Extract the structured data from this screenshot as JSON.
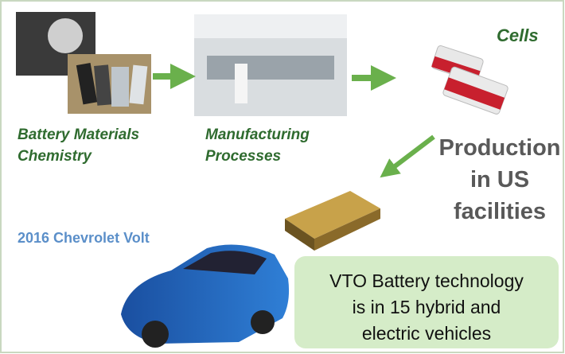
{
  "nodes": [
    {
      "id": "materials",
      "label_lines": [
        "Battery Materials",
        "Chemistry"
      ]
    },
    {
      "id": "manufacturing",
      "label_lines": [
        "Manufacturing",
        "Processes"
      ]
    },
    {
      "id": "cells",
      "label_lines": [
        "Cells"
      ]
    },
    {
      "id": "production",
      "label_lines": [
        "Production",
        "in US",
        "facilities"
      ]
    },
    {
      "id": "vehicle",
      "label_lines": [
        "2016 Chevrolet Volt"
      ]
    }
  ],
  "callout": {
    "lines": [
      "VTO Battery technology",
      "is in 15 hybrid and",
      "electric vehicles"
    ]
  }
}
